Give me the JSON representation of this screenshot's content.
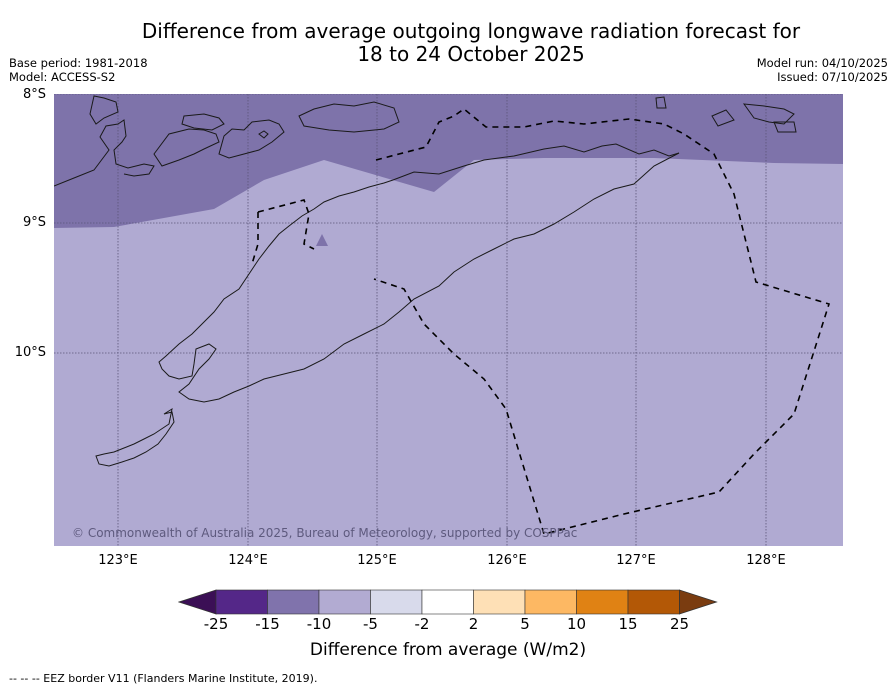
{
  "header": {
    "title_line1": "Difference from average outgoing longwave radiation forecast for",
    "title_line2": "18 to 24 October 2025",
    "base_period": "Base period: 1981-2018",
    "model": "Model: ACCESS-S2",
    "model_run": "Model run: 04/10/2025",
    "issued": "Issued: 07/10/2025"
  },
  "map": {
    "lat_labels": [
      "8°S",
      "9°S",
      "10°S"
    ],
    "lon_labels": [
      "123°E",
      "124°E",
      "125°E",
      "126°E",
      "127°E",
      "128°E"
    ],
    "extent": {
      "lon_min": 122.5,
      "lon_max": 128.6,
      "lat_min": -11.5,
      "lat_max": -8.0
    },
    "copyright": "© Commonwealth of Australia 2025, Bureau of Meteorology, supported by COSPPac",
    "fill_colors": {
      "north_band": "#7e73aa",
      "south_area": "#b0aad2"
    },
    "north_band_range": "-15 to -10",
    "south_area_range": "-10 to -5"
  },
  "colorbar": {
    "label": "Difference from average (W/m2)",
    "ticks": [
      "-25",
      "-15",
      "-10",
      "-5",
      "-2",
      "2",
      "5",
      "10",
      "15",
      "25"
    ],
    "under_color": "#3b0f55",
    "over_color": "#7a3c10",
    "colors": [
      "#542788",
      "#8073ac",
      "#b2abd2",
      "#d8daeb",
      "#ffffff",
      "#fee0b6",
      "#fdb863",
      "#e08214",
      "#b35806"
    ]
  },
  "footnote": "--  --  -- EEZ border V11 (Flanders Marine Institute, 2019)."
}
